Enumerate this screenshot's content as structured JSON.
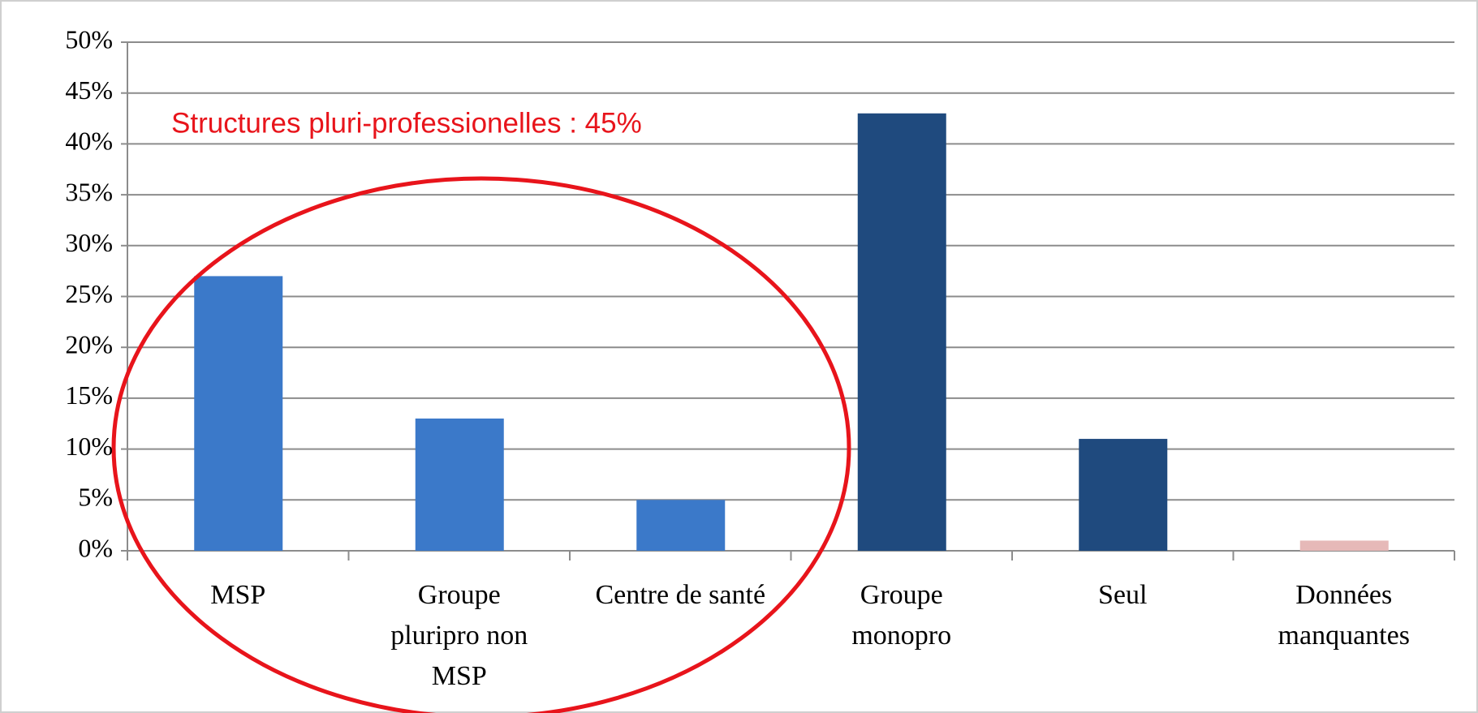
{
  "chart_data": {
    "type": "bar",
    "annotation": "Structures pluri-professionelles : 45%",
    "categories": [
      "MSP",
      "Groupe pluripro non MSP",
      "Centre de santé",
      "Groupe monopro",
      "Seul",
      "Données manquantes"
    ],
    "values": [
      27,
      13,
      5,
      43,
      11,
      1
    ],
    "colors": [
      "#3b79c9",
      "#3b79c9",
      "#3b79c9",
      "#1f4a7e",
      "#1f4a7e",
      "#e6b9b8"
    ],
    "ylim": [
      0,
      50
    ],
    "yticks": [
      {
        "value": 0,
        "label": "0%"
      },
      {
        "value": 5,
        "label": "5%"
      },
      {
        "value": 10,
        "label": "10%"
      },
      {
        "value": 15,
        "label": "15%"
      },
      {
        "value": 20,
        "label": "20%"
      },
      {
        "value": 25,
        "label": "25%"
      },
      {
        "value": 30,
        "label": "30%"
      },
      {
        "value": 35,
        "label": "35%"
      },
      {
        "value": 40,
        "label": "40%"
      },
      {
        "value": 45,
        "label": "45%"
      },
      {
        "value": 50,
        "label": "50%"
      }
    ],
    "grid": true
  }
}
